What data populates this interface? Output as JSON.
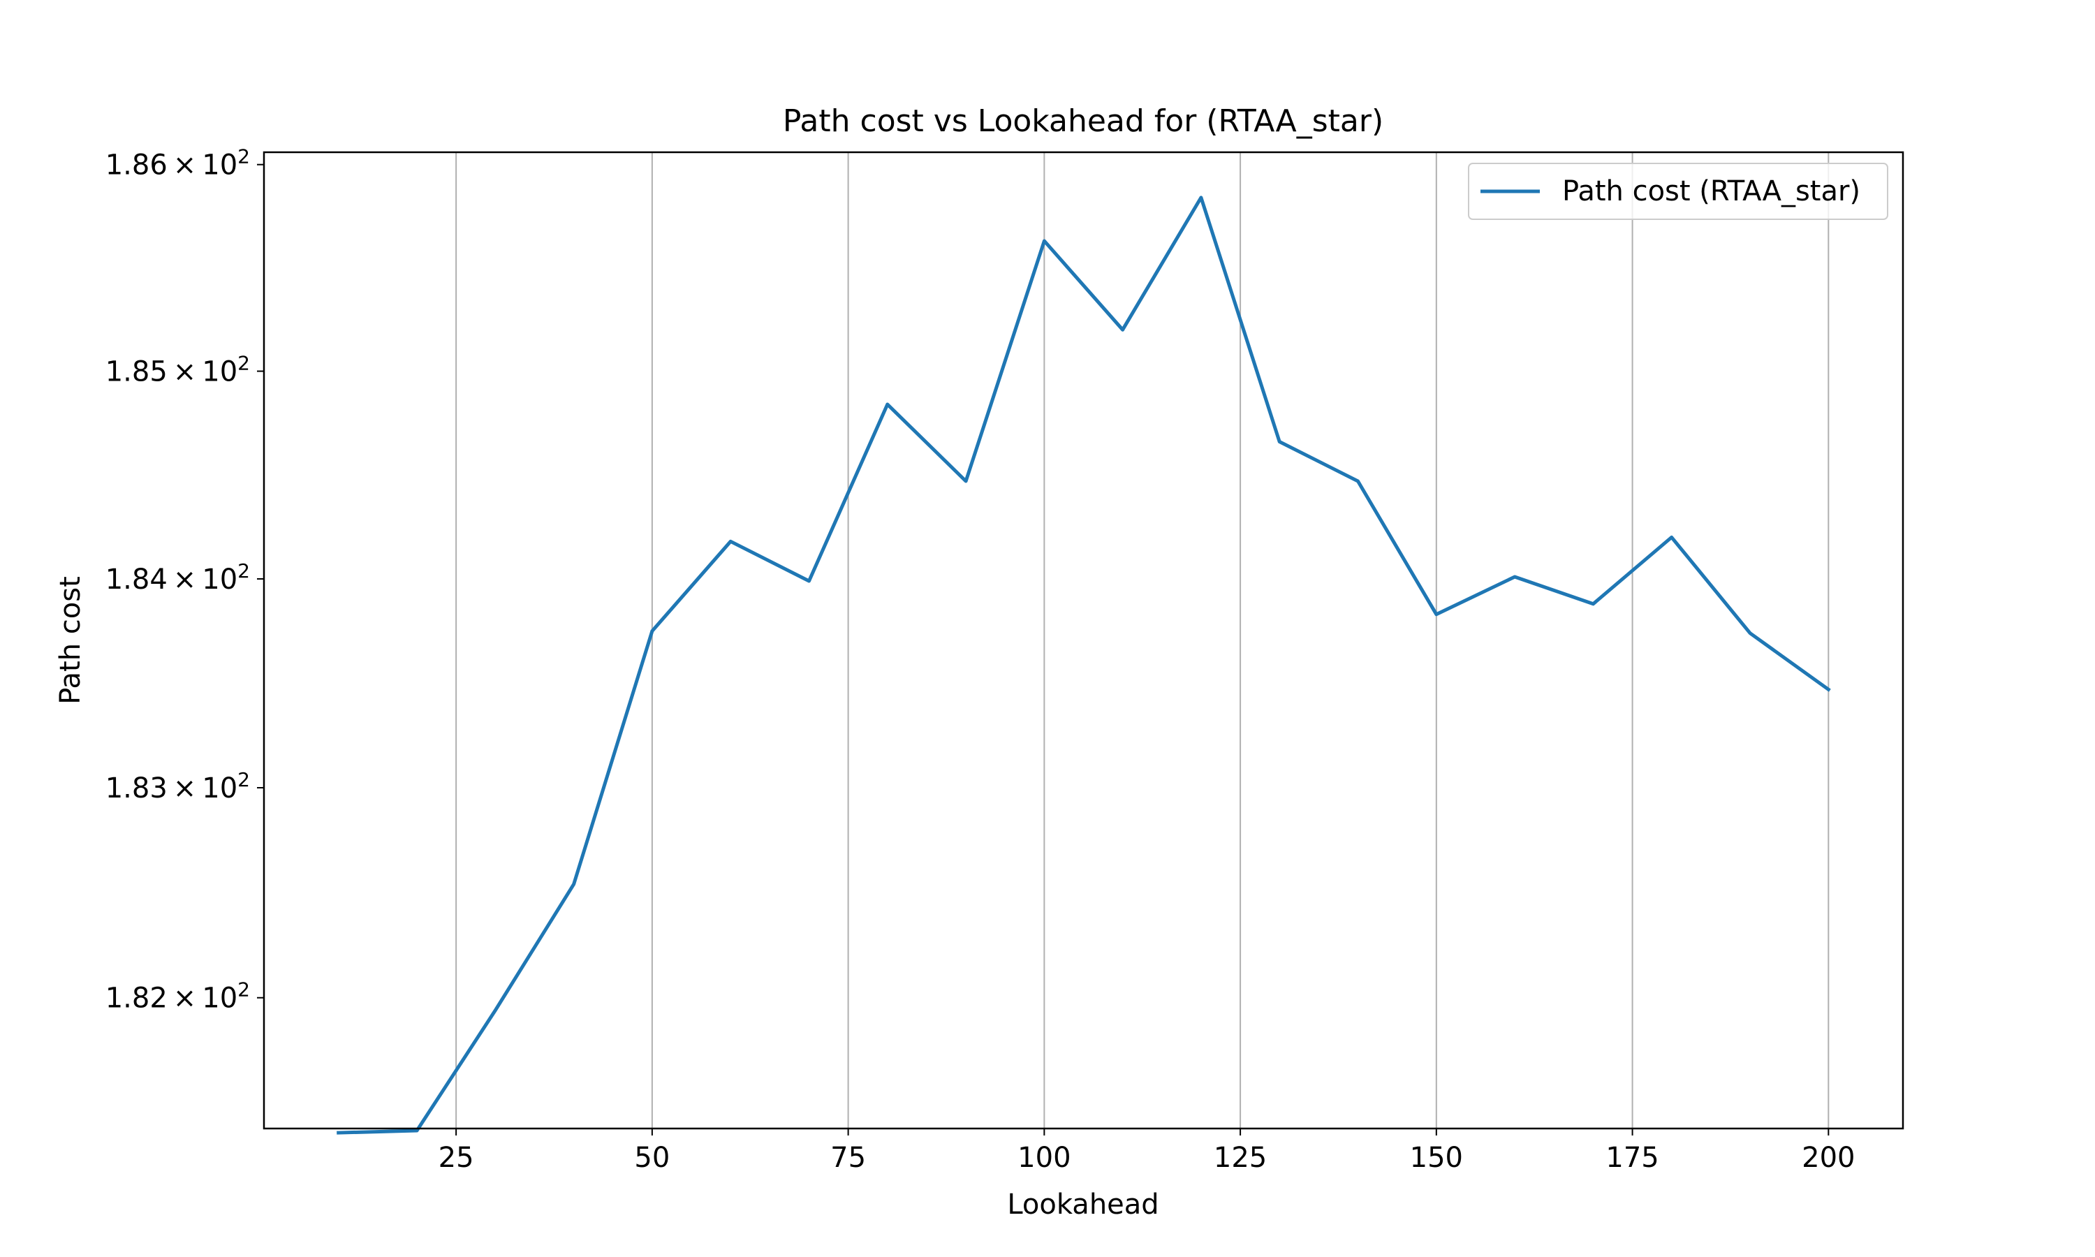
{
  "chart_data": {
    "type": "line",
    "title": "Path cost vs Lookahead for  (RTAA_star)",
    "xlabel": "Lookahead",
    "ylabel": "Path cost",
    "x_scale": "linear",
    "y_scale": "log",
    "xlim": [
      0.5,
      209.5
    ],
    "ylim": [
      181.38,
      186.06
    ],
    "x_ticks": [
      25,
      50,
      75,
      100,
      125,
      150,
      175,
      200
    ],
    "y_ticks": [
      {
        "value": 182,
        "mantissa": "1.82",
        "base": "10",
        "exp": "2"
      },
      {
        "value": 183,
        "mantissa": "1.83",
        "base": "10",
        "exp": "2"
      },
      {
        "value": 184,
        "mantissa": "1.84",
        "base": "10",
        "exp": "2"
      },
      {
        "value": 185,
        "mantissa": "1.85",
        "base": "10",
        "exp": "2"
      },
      {
        "value": 186,
        "mantissa": "1.86",
        "base": "10",
        "exp": "2"
      }
    ],
    "grid": {
      "x": true,
      "y": false
    },
    "legend_position": "upper-right",
    "series": [
      {
        "name": "Path cost (RTAA_star)",
        "color": "#1f77b4",
        "x": [
          10,
          20,
          30,
          40,
          50,
          60,
          70,
          80,
          90,
          100,
          110,
          120,
          130,
          140,
          150,
          160,
          170,
          180,
          190,
          200
        ],
        "y": [
          181.36,
          181.37,
          181.94,
          182.54,
          183.75,
          184.18,
          183.99,
          184.84,
          184.47,
          185.63,
          185.2,
          185.84,
          184.66,
          184.47,
          183.83,
          184.01,
          183.88,
          184.2,
          183.74,
          183.47
        ]
      }
    ]
  }
}
